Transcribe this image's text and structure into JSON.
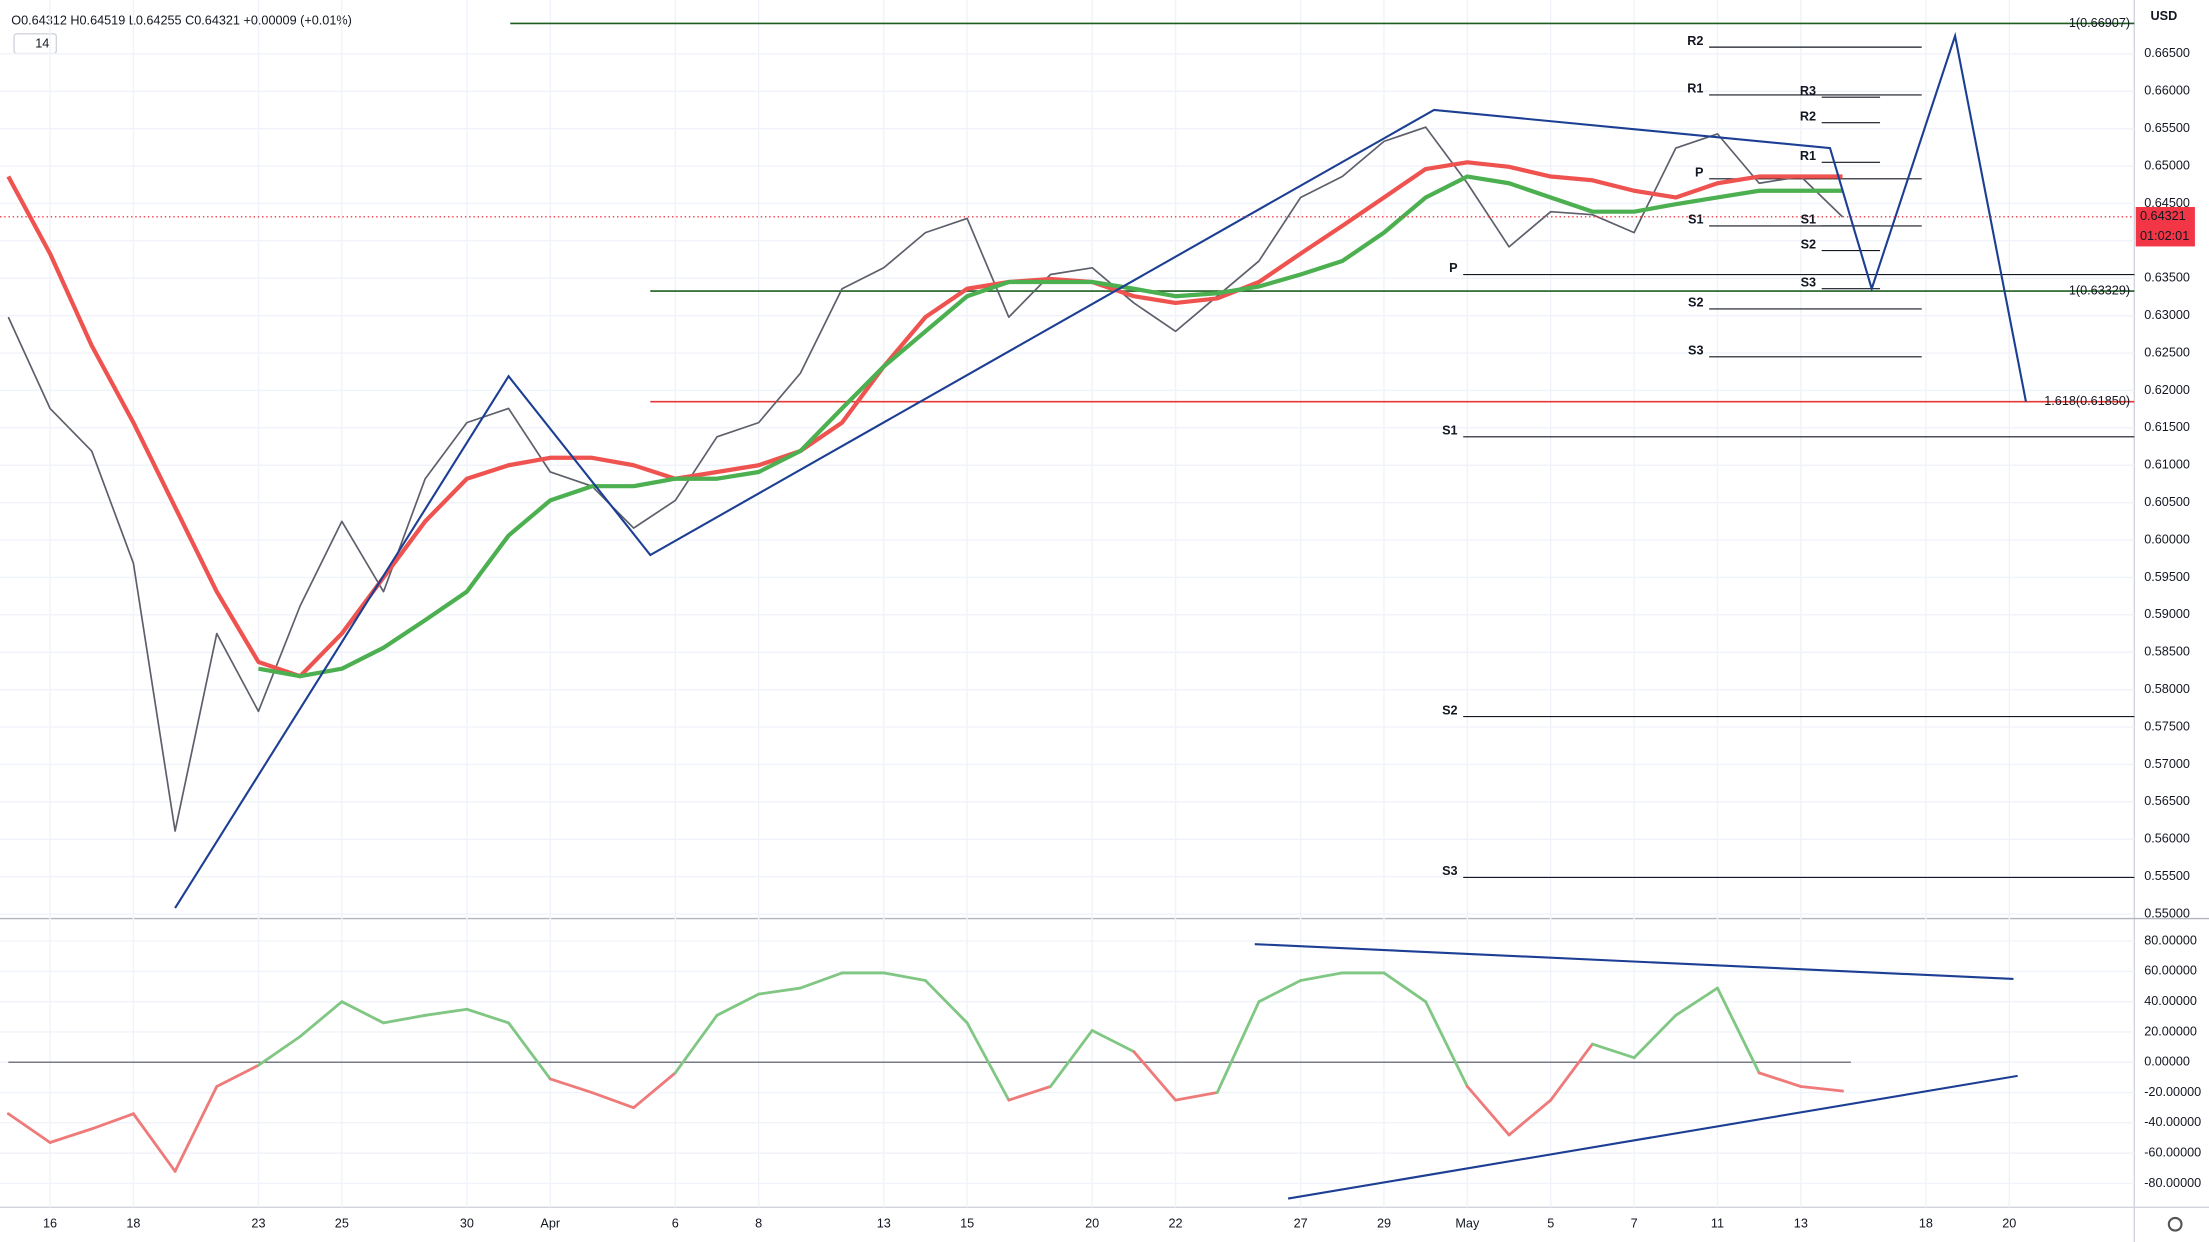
{
  "chart_data": [
    {
      "type": "line",
      "title": "O0.64312 H0.64519 L0.64255 C0.64321 +0.00009 (+0.01%)",
      "study_length": 14,
      "currency": "USD",
      "x": [
        -1,
        0,
        1,
        2,
        3,
        4,
        5,
        6,
        7,
        8,
        9,
        10,
        11,
        12,
        13,
        14,
        15,
        16,
        17,
        18,
        19,
        20,
        21,
        22,
        23,
        24,
        25,
        26,
        27,
        28,
        29,
        30,
        31,
        32,
        33,
        34,
        35,
        36,
        37,
        38,
        39,
        40,
        41,
        42,
        43
      ],
      "xlim": [
        -1.2,
        50
      ],
      "xticks": [
        {
          "value": 0,
          "label": "16"
        },
        {
          "value": 2,
          "label": "18"
        },
        {
          "value": 5,
          "label": "23"
        },
        {
          "value": 7,
          "label": "25"
        },
        {
          "value": 10,
          "label": "30"
        },
        {
          "value": 12,
          "label": "Apr"
        },
        {
          "value": 15,
          "label": "6"
        },
        {
          "value": 17,
          "label": "8"
        },
        {
          "value": 20,
          "label": "13"
        },
        {
          "value": 22,
          "label": "15"
        },
        {
          "value": 25,
          "label": "20"
        },
        {
          "value": 27,
          "label": "22"
        },
        {
          "value": 30,
          "label": "27"
        },
        {
          "value": 32,
          "label": "29"
        },
        {
          "value": 34,
          "label": "May"
        },
        {
          "value": 36,
          "label": "5"
        },
        {
          "value": 38,
          "label": "7"
        },
        {
          "value": 40,
          "label": "11"
        },
        {
          "value": 42,
          "label": "13"
        },
        {
          "value": 45,
          "label": "18"
        },
        {
          "value": 47,
          "label": "20"
        }
      ],
      "ylim": [
        0.5494,
        0.6722
      ],
      "yticks": [
        {
          "value": 0.55,
          "label": "0.55000"
        },
        {
          "value": 0.555,
          "label": "0.55500"
        },
        {
          "value": 0.56,
          "label": "0.56000"
        },
        {
          "value": 0.565,
          "label": "0.56500"
        },
        {
          "value": 0.57,
          "label": "0.57000"
        },
        {
          "value": 0.575,
          "label": "0.57500"
        },
        {
          "value": 0.58,
          "label": "0.58000"
        },
        {
          "value": 0.585,
          "label": "0.58500"
        },
        {
          "value": 0.59,
          "label": "0.59000"
        },
        {
          "value": 0.595,
          "label": "0.59500"
        },
        {
          "value": 0.6,
          "label": "0.60000"
        },
        {
          "value": 0.605,
          "label": "0.60500"
        },
        {
          "value": 0.61,
          "label": "0.61000"
        },
        {
          "value": 0.615,
          "label": "0.61500"
        },
        {
          "value": 0.62,
          "label": "0.62000"
        },
        {
          "value": 0.625,
          "label": "0.62500"
        },
        {
          "value": 0.63,
          "label": "0.63000"
        },
        {
          "value": 0.635,
          "label": "0.63500"
        },
        {
          "value": 0.64,
          "label": "0.64000"
        },
        {
          "value": 0.645,
          "label": "0.64500"
        },
        {
          "value": 0.65,
          "label": "0.65000"
        },
        {
          "value": 0.655,
          "label": "0.65500"
        },
        {
          "value": 0.66,
          "label": "0.66000"
        },
        {
          "value": 0.665,
          "label": "0.66500"
        }
      ],
      "grid": true,
      "series": [
        {
          "color": "#5d606b",
          "width": 1.2,
          "values": [
            0.6298,
            0.6176,
            0.6119,
            0.5969,
            0.5611,
            0.5875,
            0.5771,
            0.5912,
            0.6025,
            0.5931,
            0.6082,
            0.6157,
            0.6176,
            0.6091,
            0.6072,
            0.6016,
            0.6053,
            0.6138,
            0.6157,
            0.6223,
            0.6336,
            0.6364,
            0.6411,
            0.643,
            0.6298,
            0.6355,
            0.6364,
            0.6317,
            0.6279,
            0.6326,
            0.6373,
            0.6458,
            0.6486,
            0.6533,
            0.6552,
            0.6477,
            0.6392,
            0.6439,
            0.6435,
            0.6411,
            0.6524,
            0.6543,
            0.6477,
            0.6486,
            0.6432
          ]
        },
        {
          "color": "#ef5350",
          "width": 3,
          "values": [
            0.6486,
            0.6383,
            0.626,
            0.6157,
            0.6044,
            0.5931,
            0.5837,
            0.5818,
            0.5875,
            0.595,
            0.6025,
            0.6082,
            0.61,
            0.611,
            0.611,
            0.61,
            0.6082,
            0.6091,
            0.61,
            0.6119,
            0.6157,
            0.6232,
            0.6298,
            0.6336,
            0.6345,
            0.6349,
            0.6345,
            0.6326,
            0.6317,
            0.6323,
            0.6345,
            0.6383,
            0.642,
            0.6458,
            0.6496,
            0.6505,
            0.6499,
            0.6486,
            0.6481,
            0.6467,
            0.6458,
            0.6477,
            0.6486,
            0.6486,
            0.6486
          ]
        },
        {
          "color": "#4caf50",
          "width": 3,
          "values": [
            null,
            null,
            null,
            null,
            null,
            null,
            0.5828,
            0.5818,
            0.5828,
            0.5856,
            0.5893,
            0.5931,
            0.6006,
            0.6053,
            0.6072,
            0.6072,
            0.6082,
            0.6082,
            0.6091,
            0.6119,
            0.6176,
            0.6232,
            0.6279,
            0.6326,
            0.6345,
            0.6345,
            0.6345,
            0.6336,
            0.6326,
            0.633,
            0.6339,
            0.6355,
            0.6373,
            0.6411,
            0.6458,
            0.6486,
            0.6477,
            0.6458,
            0.6439,
            0.6439,
            0.6449,
            0.6458,
            0.6467,
            0.6467,
            0.6467
          ]
        }
      ],
      "last_price": {
        "value": 0.64321,
        "label": "0.64321"
      },
      "countdown": "01:02:01",
      "levels": [
        {
          "value": 0.66907,
          "label": "1(0.66907)",
          "color": "#1b5e20",
          "x": [
            11.04,
            50
          ]
        },
        {
          "value": 0.63329,
          "label": "1(0.63329)",
          "color": "#1b5e20",
          "x": [
            14.4,
            50
          ]
        },
        {
          "value": 0.6185,
          "label": "1.618(0.61850)",
          "color": "#e53935",
          "x": [
            14.4,
            50
          ]
        }
      ],
      "pivots": [
        {
          "x": [
            33.9,
            50
          ],
          "levels": [
            {
              "label": "P",
              "value": 0.6355
            },
            {
              "label": "S1",
              "value": 0.6138
            },
            {
              "label": "S2",
              "value": 0.5764
            },
            {
              "label": "S3",
              "value": 0.5549
            }
          ]
        },
        {
          "x": [
            39.8,
            44.9
          ],
          "levels": [
            {
              "label": "R2",
              "value": 0.6659
            },
            {
              "label": "R1",
              "value": 0.6595
            },
            {
              "label": "P",
              "value": 0.6483
            },
            {
              "label": "S1",
              "value": 0.642
            },
            {
              "label": "S2",
              "value": 0.6309
            },
            {
              "label": "S3",
              "value": 0.6245
            }
          ]
        },
        {
          "x": [
            42.5,
            43.9
          ],
          "levels": [
            {
              "label": "R3",
              "value": 0.6592
            },
            {
              "label": "R2",
              "value": 0.6558
            },
            {
              "label": "R1",
              "value": 0.6505
            },
            {
              "label": "S1",
              "value": 0.642
            },
            {
              "label": "S2",
              "value": 0.6387
            },
            {
              "label": "S3",
              "value": 0.6336
            }
          ]
        }
      ],
      "zigzag": {
        "color": "#1c3f94",
        "x": [
          3.0,
          11.0,
          14.4,
          33.2,
          42.7,
          43.7,
          45.7,
          47.4
        ],
        "values": [
          0.5508,
          0.6219,
          0.598,
          0.6575,
          0.6524,
          0.6336,
          0.6674,
          0.6185
        ]
      }
    },
    {
      "type": "line",
      "x": [
        -1,
        0,
        1,
        2,
        3,
        4,
        5,
        6,
        7,
        8,
        9,
        10,
        11,
        12,
        13,
        14,
        15,
        16,
        17,
        18,
        19,
        20,
        21,
        22,
        23,
        24,
        25,
        26,
        27,
        28,
        29,
        30,
        31,
        32,
        33,
        34,
        35,
        36,
        37,
        38,
        39,
        40,
        41,
        42,
        43
      ],
      "ylim": [
        -95.8,
        94.9
      ],
      "yticks": [
        {
          "value": 80,
          "label": "80.00000"
        },
        {
          "value": 60,
          "label": "60.00000"
        },
        {
          "value": 40,
          "label": "40.00000"
        },
        {
          "value": 20,
          "label": "20.00000"
        },
        {
          "value": 0,
          "label": "0.00000"
        },
        {
          "value": -20,
          "label": "-20.00000"
        },
        {
          "value": -40,
          "label": "-40.00000"
        },
        {
          "value": -60,
          "label": "-60.00000"
        },
        {
          "value": -80,
          "label": "-80.00000"
        }
      ],
      "grid": true,
      "zero_line": {
        "value": 0,
        "color": "#787b86",
        "x": [
          -1,
          43.2
        ]
      },
      "series": [
        {
          "color_up": "#81c784",
          "color_down": "#ef7a7a",
          "values": [
            -34,
            -53,
            -44,
            -34,
            -72,
            -16,
            -2,
            17,
            40,
            26,
            31,
            35,
            26,
            -11,
            -20,
            -30,
            -7,
            31,
            45,
            49,
            59,
            59,
            54,
            26,
            -25,
            -16,
            21,
            7,
            -25,
            -20,
            40,
            54,
            59,
            59,
            40,
            -16,
            -48,
            -25,
            12,
            3,
            31,
            49,
            -7,
            -16,
            -19
          ]
        }
      ],
      "trendlines": [
        {
          "color": "#1c3f94",
          "x": [
            28.9,
            47.1
          ],
          "values": [
            78,
            55
          ]
        },
        {
          "color": "#1c3f94",
          "x": [
            29.7,
            47.2
          ],
          "values": [
            -90,
            -9
          ]
        }
      ]
    }
  ]
}
